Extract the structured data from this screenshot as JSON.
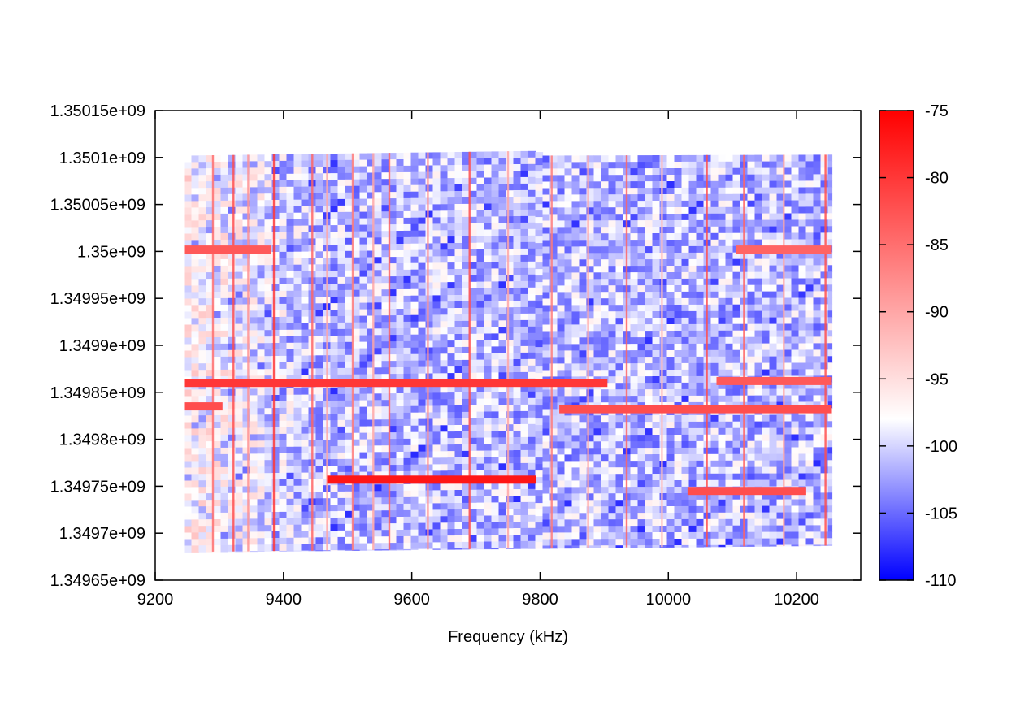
{
  "chart_data": {
    "type": "heatmap",
    "title": "",
    "xlabel": "Frequency (kHz)",
    "ylabel": "",
    "xlim": [
      9200,
      10300
    ],
    "ylim": [
      1349650000,
      1350150000
    ],
    "x_ticks": [
      9200,
      9400,
      9600,
      9800,
      10000,
      10200
    ],
    "x_tick_labels": [
      "9200",
      "9400",
      "9600",
      "9800",
      "10000",
      "10200"
    ],
    "y_ticks": [
      1349650000,
      1349700000,
      1349750000,
      1349800000,
      1349850000,
      1349900000,
      1349950000,
      1350000000,
      1350050000,
      1350100000,
      1350150000
    ],
    "y_tick_labels": [
      "1.34965e+09",
      "1.3497e+09",
      "1.34975e+09",
      "1.3498e+09",
      "1.34985e+09",
      "1.3499e+09",
      "1.34995e+09",
      "1.35e+09",
      "1.35005e+09",
      "1.3501e+09",
      "1.35015e+09"
    ],
    "colorbar": {
      "range": [
        -110,
        -75
      ],
      "ticks": [
        -75,
        -80,
        -85,
        -90,
        -95,
        -100,
        -105,
        -110
      ],
      "tick_labels": [
        "-75",
        "-80",
        "-85",
        "-90",
        "-95",
        "-100",
        "-105",
        "-110"
      ],
      "palette": [
        "#0000ff",
        "#ffffff",
        "#ff0000"
      ],
      "palette_stops": [
        -110,
        -98,
        -75
      ]
    },
    "data_extent": {
      "x_range": [
        9245,
        10255
      ],
      "y_bottom_at_x": [
        [
          9245,
          1349680000
        ],
        [
          10255,
          1349687000
        ]
      ],
      "y_top_at_x": [
        [
          9245,
          1350102000
        ],
        [
          9790,
          1350107000
        ],
        [
          9800,
          1350102000
        ],
        [
          10255,
          1350103000
        ]
      ],
      "background_value": -101
    },
    "horizontal_bands": [
      {
        "x": [
          9245,
          9380
        ],
        "y": 1350002000,
        "value": -83
      },
      {
        "x": [
          10105,
          10255
        ],
        "y": 1350002000,
        "value": -84
      },
      {
        "x": [
          9245,
          9905
        ],
        "y": 1349860000,
        "value": -80
      },
      {
        "x": [
          10075,
          10255
        ],
        "y": 1349862000,
        "value": -83
      },
      {
        "x": [
          9245,
          9305
        ],
        "y": 1349835000,
        "value": -82
      },
      {
        "x": [
          9830,
          10255
        ],
        "y": 1349832000,
        "value": -82
      },
      {
        "x": [
          9468,
          9793
        ],
        "y": 1349757000,
        "value": -77
      },
      {
        "x": [
          10030,
          10215
        ],
        "y": 1349745000,
        "value": -82
      }
    ],
    "vertical_lines": [
      {
        "x": 9290,
        "value": -85
      },
      {
        "x": 9322,
        "value": -82
      },
      {
        "x": 9345,
        "value": -88
      },
      {
        "x": 9385,
        "value": -80
      },
      {
        "x": 9445,
        "value": -84
      },
      {
        "x": 9468,
        "value": -90
      },
      {
        "x": 9508,
        "value": -86
      },
      {
        "x": 9540,
        "value": -90
      },
      {
        "x": 9565,
        "value": -84
      },
      {
        "x": 9625,
        "value": -88
      },
      {
        "x": 9690,
        "value": -82
      },
      {
        "x": 9750,
        "value": -90
      },
      {
        "x": 9818,
        "value": -86
      },
      {
        "x": 9875,
        "value": -90
      },
      {
        "x": 9935,
        "value": -84
      },
      {
        "x": 9990,
        "value": -92
      },
      {
        "x": 10060,
        "value": -82
      },
      {
        "x": 10118,
        "value": -84
      },
      {
        "x": 10180,
        "value": -90
      },
      {
        "x": 10245,
        "value": -82
      }
    ]
  }
}
